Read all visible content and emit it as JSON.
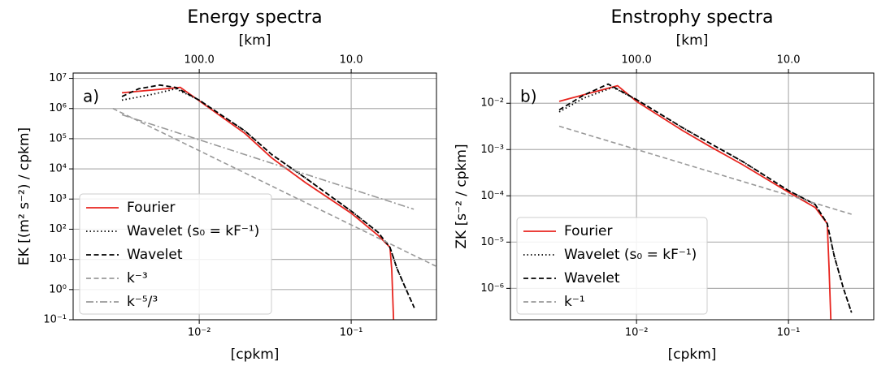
{
  "chart_data": [
    {
      "type": "line",
      "title": "Energy spectra",
      "top_xlabel": "[km]",
      "xlabel": "[cpkm]",
      "ylabel": "EK [(m² s⁻²) / cpkm]",
      "panel_label": "a)",
      "log_x": true,
      "log_y": true,
      "grid": true,
      "legend": "lower left",
      "xlim": [
        0.00148,
        0.364
      ],
      "ylim": [
        0.1,
        15000000
      ],
      "xticks": [
        {
          "value": 0.01,
          "label": "10⁻²"
        },
        {
          "value": 0.1,
          "label": "10⁻¹"
        }
      ],
      "top_xticks": [
        {
          "value": 0.01,
          "label": "100.0"
        },
        {
          "value": 0.1,
          "label": "10.0"
        }
      ],
      "yticks": [
        {
          "value": 10000000,
          "label": "10⁷"
        },
        {
          "value": 1000000,
          "label": "10⁶"
        },
        {
          "value": 100000,
          "label": "10⁵"
        },
        {
          "value": 10000,
          "label": "10⁴"
        },
        {
          "value": 1000,
          "label": "10³"
        },
        {
          "value": 100,
          "label": "10²"
        },
        {
          "value": 10,
          "label": "10¹"
        },
        {
          "value": 1,
          "label": "10⁰"
        },
        {
          "value": 0.1,
          "label": "10⁻¹"
        }
      ],
      "series": [
        {
          "name": "Fourier",
          "color": "#e8251f",
          "style": "solid",
          "x": [
            0.0031,
            0.0075,
            0.01,
            0.02,
            0.03,
            0.05,
            0.1,
            0.15,
            0.18,
            0.185,
            0.19
          ],
          "values": [
            3300000,
            5000000,
            1800000,
            150000,
            23000,
            3500,
            340,
            63,
            25,
            4.5,
            0.1
          ]
        },
        {
          "name": "Wavelet (s₀ = kF⁻¹)",
          "color": "#000000",
          "style": "dotted",
          "x": [
            0.0031,
            0.005,
            0.007,
            0.01,
            0.02,
            0.03,
            0.05,
            0.1,
            0.15,
            0.18,
            0.2,
            0.23,
            0.26
          ],
          "values": [
            1900000,
            3000000,
            4500000,
            1900000,
            180000,
            30000,
            5000,
            400,
            80,
            25,
            5,
            1,
            0.25
          ]
        },
        {
          "name": "Wavelet",
          "color": "#000000",
          "style": "dashed",
          "x": [
            0.0031,
            0.004,
            0.0055,
            0.007,
            0.01,
            0.02,
            0.03,
            0.05,
            0.1,
            0.15,
            0.18,
            0.2,
            0.23,
            0.26
          ],
          "values": [
            2500000,
            4500000,
            6000000,
            5000000,
            1900000,
            180000,
            30000,
            5000,
            400,
            80,
            25,
            5,
            1,
            0.25
          ]
        },
        {
          "name": "k⁻³",
          "color": "#999999",
          "style": "dashed",
          "x": [
            0.0027,
            0.36
          ],
          "values": [
            1000000,
            6
          ]
        },
        {
          "name": "k⁻⁵/³",
          "color": "#999999",
          "style": "dashdot",
          "x": [
            0.0031,
            0.258
          ],
          "values": [
            620000,
            460
          ]
        }
      ]
    },
    {
      "type": "line",
      "title": "Enstrophy spectra",
      "top_xlabel": "[km]",
      "xlabel": "[cpkm]",
      "ylabel": "ZK [s⁻² / cpkm]",
      "panel_label": "b)",
      "log_x": true,
      "log_y": true,
      "grid": true,
      "legend": "lower left",
      "xlim": [
        0.00148,
        0.364
      ],
      "ylim": [
        2.1e-07,
        0.045
      ],
      "xticks": [
        {
          "value": 0.01,
          "label": "10⁻²"
        },
        {
          "value": 0.1,
          "label": "10⁻¹"
        }
      ],
      "top_xticks": [
        {
          "value": 0.01,
          "label": "100.0"
        },
        {
          "value": 0.1,
          "label": "10.0"
        }
      ],
      "yticks": [
        {
          "value": 0.01,
          "label": "10⁻²"
        },
        {
          "value": 0.001,
          "label": "10⁻³"
        },
        {
          "value": 0.0001,
          "label": "10⁻⁴"
        },
        {
          "value": 1e-05,
          "label": "10⁻⁵"
        },
        {
          "value": 1e-06,
          "label": "10⁻⁶"
        }
      ],
      "series": [
        {
          "name": "Fourier",
          "color": "#e8251f",
          "style": "solid",
          "x": [
            0.0031,
            0.0075,
            0.01,
            0.02,
            0.03,
            0.05,
            0.1,
            0.15,
            0.18,
            0.185,
            0.19
          ],
          "values": [
            0.011,
            0.024,
            0.011,
            0.0026,
            0.0012,
            0.00047,
            0.00012,
            5.6e-05,
            2.5e-05,
            2.8e-06,
            2.1e-07
          ]
        },
        {
          "name": "Wavelet (s₀ = kF⁻¹)",
          "color": "#000000",
          "style": "dotted",
          "x": [
            0.0031,
            0.0045,
            0.007,
            0.01,
            0.02,
            0.03,
            0.05,
            0.1,
            0.15,
            0.18,
            0.2,
            0.23,
            0.26
          ],
          "values": [
            0.0065,
            0.013,
            0.022,
            0.012,
            0.003,
            0.0014,
            0.00055,
            0.00013,
            6.5e-05,
            2.5e-05,
            5e-06,
            1e-06,
            3e-07
          ]
        },
        {
          "name": "Wavelet",
          "color": "#000000",
          "style": "dashed",
          "x": [
            0.0031,
            0.0045,
            0.0065,
            0.01,
            0.02,
            0.03,
            0.05,
            0.1,
            0.15,
            0.18,
            0.2,
            0.23,
            0.26
          ],
          "values": [
            0.0072,
            0.015,
            0.026,
            0.012,
            0.003,
            0.0014,
            0.00055,
            0.00013,
            6.5e-05,
            2.5e-05,
            5e-06,
            1e-06,
            3e-07
          ]
        },
        {
          "name": "k⁻¹",
          "color": "#999999",
          "style": "dashed",
          "x": [
            0.0031,
            0.26
          ],
          "values": [
            0.0032,
            4e-05
          ]
        }
      ]
    }
  ]
}
